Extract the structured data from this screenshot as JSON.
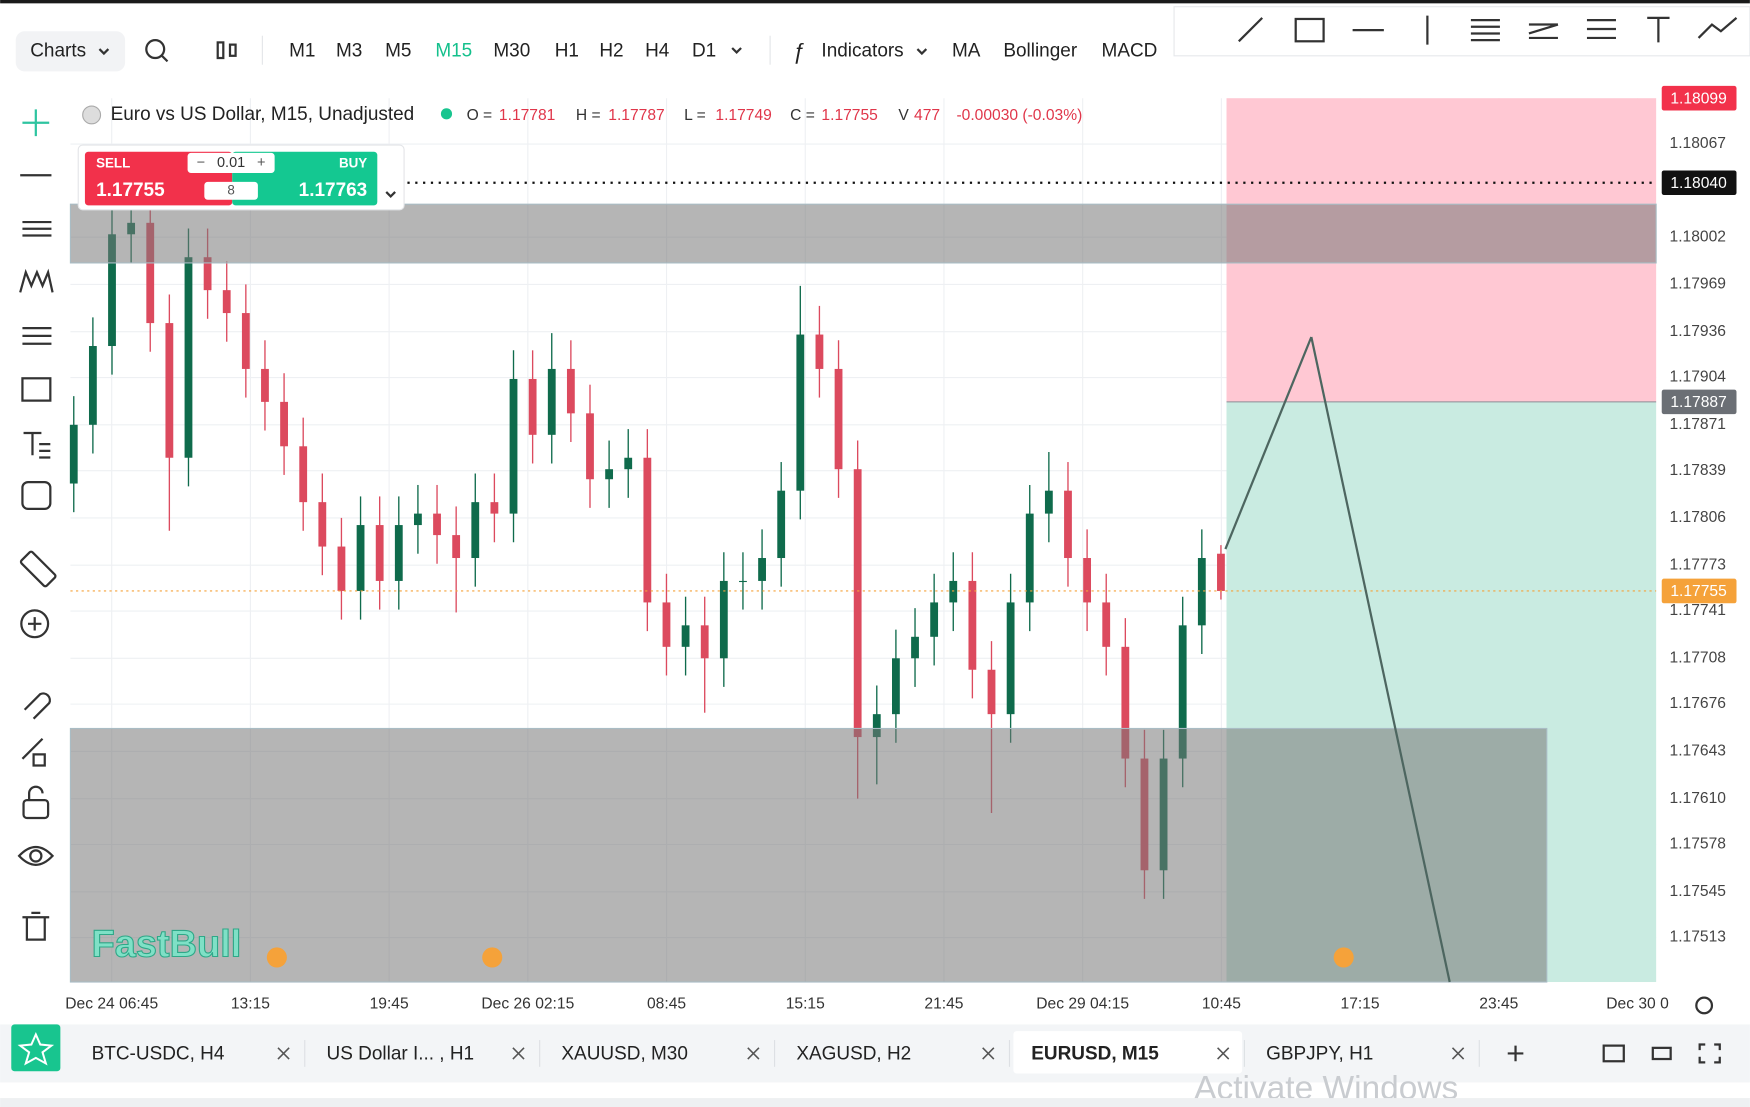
{
  "toolbar": {
    "charts": "Charts",
    "timeframes": [
      "M1",
      "M3",
      "M5",
      "M15",
      "M30",
      "H1",
      "H2",
      "H4",
      "D1"
    ],
    "active_timeframe": 3,
    "indicators": "Indicators",
    "indicator_shortcuts": [
      "MA",
      "Bollinger",
      "MACD"
    ]
  },
  "trade_panel": {
    "sell_label": "SELL",
    "sell_price": 1.17755,
    "buy_label": "BUY",
    "buy_price": 1.17763,
    "lot": 0.01,
    "spread": 8
  },
  "chart_data": {
    "type": "candlestick",
    "title": "Euro vs US Dollar, M15, Unadjusted",
    "summary": [
      {
        "name": "O =",
        "value": 1.17781
      },
      {
        "name": "H =",
        "value": 1.17787
      },
      {
        "name": "L =",
        "value": 1.17749
      },
      {
        "name": "C =",
        "value": 1.17755
      },
      {
        "name": "V",
        "value": 477
      }
    ],
    "change": {
      "value": -0.0003,
      "label": "-0.00030 (-0.03%)"
    },
    "up_color": "#0f6b4c",
    "down_color": "#dc4a5e",
    "ylim": [
      1.17482,
      1.18099
    ],
    "yticks": [
      1.18067,
      1.18002,
      1.17969,
      1.17936,
      1.17904,
      1.17871,
      1.17839,
      1.17806,
      1.17773,
      1.17741,
      1.17708,
      1.17676,
      1.17643,
      {
        "value": 1.1761,
        "label": "1.17610"
      },
      1.17578,
      1.17545,
      1.17513
    ],
    "xticks": [
      "Dec 24 06:45",
      "13:15",
      "19:45",
      "Dec 26 02:15",
      "08:45",
      "15:15",
      "21:45",
      "Dec 29 04:15",
      "10:45",
      "17:15",
      "23:45",
      "Dec 30 0"
    ],
    "grid": true,
    "price_labels": [
      {
        "value": 1.18099,
        "color": "#f2314b"
      },
      {
        "value": {
          "value": 1.1804,
          "label": "1.18040"
        },
        "color": "#111111"
      },
      {
        "value": 1.17887,
        "color": "#6b6f75"
      },
      {
        "value": 1.17755,
        "color": "#f5a23a"
      }
    ],
    "zones": [
      {
        "top": 1.18025,
        "bottom": 1.17984
      },
      {
        "top": 1.17659,
        "bottom": 1.17482
      }
    ],
    "candles": [
      [
        1.1783,
        1.17891,
        1.1781,
        1.17871
      ],
      [
        1.17871,
        1.17946,
        1.17851,
        1.17926
      ],
      [
        1.17926,
        1.1803,
        1.17906,
        1.18004
      ],
      [
        1.18004,
        1.1804,
        1.17984,
        1.18012
      ],
      [
        1.18012,
        1.18032,
        1.17922,
        1.17942
      ],
      [
        1.17942,
        1.17962,
        1.17797,
        1.17848
      ],
      [
        1.17848,
        1.18008,
        1.17828,
        1.17988
      ],
      [
        1.17988,
        1.18008,
        1.17945,
        1.17965
      ],
      [
        1.17965,
        1.17985,
        1.17929,
        1.17949
      ],
      [
        1.17949,
        1.17969,
        1.1789,
        1.1791
      ],
      [
        1.1791,
        1.1793,
        1.17867,
        1.17887
      ],
      [
        1.17887,
        1.17907,
        1.17836,
        1.17856
      ],
      [
        1.17856,
        1.17876,
        1.17797,
        1.17817
      ],
      [
        1.17817,
        1.17837,
        1.17766,
        1.17786
      ],
      [
        1.17786,
        1.17806,
        1.17735,
        1.17755
      ],
      [
        1.17755,
        1.17821,
        1.17735,
        1.17801
      ],
      [
        1.17801,
        1.17821,
        1.17742,
        1.17762
      ],
      [
        1.17762,
        1.17821,
        1.17742,
        1.17801
      ],
      [
        1.17801,
        1.17829,
        1.17781,
        1.17809
      ],
      [
        1.17809,
        1.17829,
        1.17774,
        1.17794
      ],
      [
        1.17794,
        1.17814,
        1.1774,
        1.17778
      ],
      [
        1.17778,
        1.17837,
        1.17758,
        1.17817
      ],
      [
        1.17817,
        1.17837,
        1.17789,
        1.17809
      ],
      [
        1.17809,
        1.17923,
        1.17789,
        1.17903
      ],
      [
        1.17903,
        1.17923,
        1.17844,
        1.17864
      ],
      [
        1.17864,
        1.17935,
        1.17844,
        1.1791
      ],
      [
        1.1791,
        1.1793,
        1.17859,
        1.17879
      ],
      [
        1.17879,
        1.17899,
        1.17813,
        1.17833
      ],
      [
        1.17833,
        1.1786,
        1.17813,
        1.1784
      ],
      [
        1.1784,
        1.17868,
        1.1782,
        1.17848
      ],
      [
        1.17848,
        1.17868,
        1.17727,
        1.17747
      ],
      [
        1.17747,
        1.17767,
        1.17696,
        1.17716
      ],
      [
        1.17716,
        1.17751,
        1.17696,
        1.17731
      ],
      [
        1.17731,
        1.17751,
        1.1767,
        1.17708
      ],
      [
        1.17708,
        1.17782,
        1.17688,
        1.17762
      ],
      [
        1.17762,
        1.17782,
        1.17742,
        1.17762
      ],
      [
        1.17762,
        1.17798,
        1.17742,
        1.17778
      ],
      [
        1.17778,
        1.17845,
        1.17758,
        1.17825
      ],
      [
        1.17825,
        1.17968,
        1.17805,
        1.17934
      ],
      [
        1.17934,
        1.17954,
        1.1789,
        1.1791
      ],
      [
        1.1791,
        1.1793,
        1.1782,
        1.1784
      ],
      [
        1.1784,
        1.1786,
        1.1761,
        1.17653
      ],
      [
        1.17653,
        1.17689,
        1.1762,
        1.17669
      ],
      [
        1.17669,
        1.17728,
        1.17649,
        1.17708
      ],
      [
        1.17708,
        1.17743,
        1.17688,
        1.17723
      ],
      [
        1.17723,
        1.17767,
        1.17703,
        1.17747
      ],
      [
        1.17747,
        1.17782,
        1.17727,
        1.17762
      ],
      [
        1.17762,
        1.17782,
        1.1768,
        1.177
      ],
      [
        1.177,
        1.1772,
        1.176,
        1.17669
      ],
      [
        1.17669,
        1.17767,
        1.17649,
        1.17747
      ],
      [
        1.17747,
        1.17829,
        1.17727,
        1.17809
      ],
      [
        1.17809,
        1.17852,
        1.17789,
        1.17825
      ],
      [
        1.17825,
        1.17845,
        1.17758,
        1.17778
      ],
      [
        1.17778,
        1.17798,
        1.17727,
        1.17747
      ],
      [
        1.17747,
        1.17767,
        1.17696,
        1.17716
      ],
      [
        1.17716,
        1.17736,
        1.17618,
        1.17638
      ],
      [
        1.17638,
        1.17658,
        1.1754,
        1.1756
      ],
      [
        1.1756,
        1.17658,
        1.1754,
        1.17638
      ],
      [
        1.17638,
        1.17751,
        1.17618,
        1.17731
      ],
      [
        1.17731,
        1.17798,
        1.17711,
        1.17778
      ],
      [
        1.17781,
        1.17787,
        1.17749,
        1.17755
      ]
    ]
  },
  "watermark": "FastBull",
  "tabs": [
    "BTC-USDC, H4",
    "US Dollar I... , H1",
    "XAUUSD, M30",
    "XAGUSD, H2",
    "EURUSD, M15",
    "GBPJPY, H1"
  ],
  "active_tab": 4,
  "os_notice": "Activate Windows"
}
